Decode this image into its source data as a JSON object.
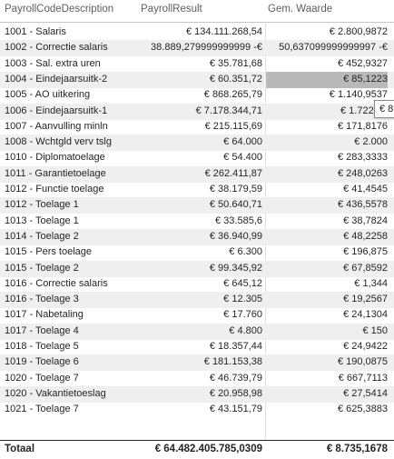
{
  "headers": {
    "col1": "PayrollCodeDescription",
    "col2": "PayrollResult",
    "col3": "Gem. Waarde"
  },
  "rows": [
    {
      "desc": "1001 - Salaris",
      "result": "€ 134.111.268,54",
      "gem": "€ 2.800,9872"
    },
    {
      "desc": "1002 - Correctie salaris",
      "result": "38.889,279999999999 -€",
      "gem": "50,637099999999997 -€"
    },
    {
      "desc": "1003 - Sal. extra uren",
      "result": "€ 35.781,68",
      "gem": "€ 452,9327"
    },
    {
      "desc": "1004 - Eindejaarsuitk-2",
      "result": "€ 60.351,72",
      "gem": "€ 85,1223"
    },
    {
      "desc": "1005 - AO uitkering",
      "result": "€ 868.265,79",
      "gem": "€ 1.140,9537"
    },
    {
      "desc": "1006 - Eindejaarsuitk-1",
      "result": "€ 7.178.344,71",
      "gem": "€ 1.722,25"
    },
    {
      "desc": "1007 - Aanvulling minln",
      "result": "€ 215.115,69",
      "gem": "€ 171,8176"
    },
    {
      "desc": "1008 - Wchtgld verv tslg",
      "result": "€ 64.000",
      "gem": "€ 2.000"
    },
    {
      "desc": "1010 - Diplomatoelage",
      "result": "€ 54.400",
      "gem": "€ 283,3333"
    },
    {
      "desc": "1011 - Garantietoelage",
      "result": "€ 262.411,87",
      "gem": "€ 248,0263"
    },
    {
      "desc": "1012 - Functie toelage",
      "result": "€ 38.179,59",
      "gem": "€ 41,4545"
    },
    {
      "desc": "1012 - Toelage 1",
      "result": "€ 50.640,71",
      "gem": "€ 436,5578"
    },
    {
      "desc": "1013 - Toelage 1",
      "result": "€ 33.585,6",
      "gem": "€ 38,7824"
    },
    {
      "desc": "1014 - Toelage 2",
      "result": "€ 36.940,99",
      "gem": "€ 48,2258"
    },
    {
      "desc": "1015 - Pers toelage",
      "result": "€ 6.300",
      "gem": "€ 196,875"
    },
    {
      "desc": "1015 - Toelage 2",
      "result": "€ 99.345,92",
      "gem": "€ 67,8592"
    },
    {
      "desc": "1016 - Correctie salaris",
      "result": "€ 645,12",
      "gem": "€ 1,344"
    },
    {
      "desc": "1016 - Toelage 3",
      "result": "€ 12.305",
      "gem": "€ 19,2567"
    },
    {
      "desc": "1017 - Nabetaling",
      "result": "€ 17.760",
      "gem": "€ 24,1304"
    },
    {
      "desc": "1017 - Toelage 4",
      "result": "€ 4.800",
      "gem": "€ 150"
    },
    {
      "desc": "1018 - Toelage 5",
      "result": "€ 18.357,44",
      "gem": "€ 24,9422"
    },
    {
      "desc": "1019 - Toelage 6",
      "result": "€ 181.153,38",
      "gem": "€ 190,0875"
    },
    {
      "desc": "1020 - Toelage 7",
      "result": "€ 46.739,79",
      "gem": "€ 667,7113"
    },
    {
      "desc": "1020 - Vakantietoeslag",
      "result": "€ 20.958,98",
      "gem": "€ 27,5414"
    },
    {
      "desc": "1021 - Toelage 7",
      "result": "€ 43.151,79",
      "gem": "€ 625,3883"
    }
  ],
  "highlighted_row": 3,
  "highlight_color": "#b9b9b9",
  "total": {
    "label": "Totaal",
    "result": "€ 64.482.405.785,0309",
    "gem": "€ 8.735,1678"
  },
  "tooltip": {
    "text": "€ 8"
  }
}
